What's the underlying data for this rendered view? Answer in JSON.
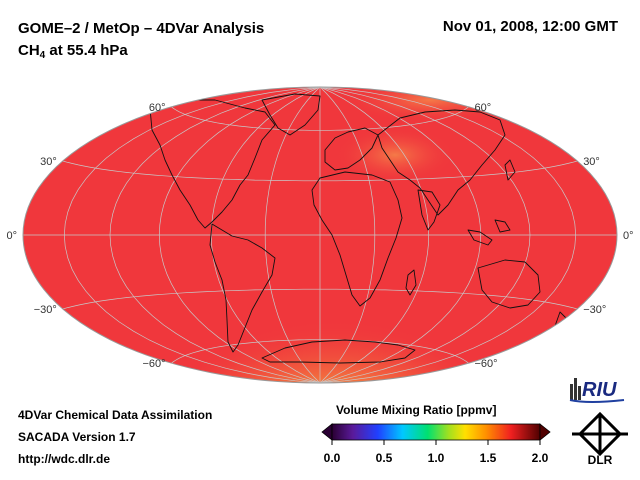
{
  "header": {
    "title_line1": "GOME–2 / MetOp – 4DVar Analysis",
    "species_main": "CH",
    "species_sub": "4",
    "species_rest": " at 55.4 hPa",
    "datetime": "Nov 01, 2008, 12:00 GMT"
  },
  "map": {
    "projection": "Hammer-Aitoff",
    "lat_labels": [
      {
        "lat": 60,
        "text": "60°"
      },
      {
        "lat": 30,
        "text": "30°"
      },
      {
        "lat": 0,
        "text": "0°"
      },
      {
        "lat": -30,
        "text": "−30°"
      },
      {
        "lat": -60,
        "text": "−60°"
      }
    ],
    "colors": {
      "background_field": "#f0373c",
      "antarctic_field": "#f5b040",
      "graticule": "#bbbbbb"
    }
  },
  "colorbar": {
    "title": "Volume Mixing Ratio [ppmv]",
    "min": 0.0,
    "max": 2.0,
    "ticks": [
      "0.0",
      "0.5",
      "1.0",
      "1.5",
      "2.0"
    ]
  },
  "footer": {
    "line1": "4DVar Chemical Data Assimilation",
    "line2": "SACADA Version 1.7",
    "line3": "http://wdc.dlr.de"
  },
  "logos": {
    "riu": "RIU",
    "dlr": "DLR"
  }
}
